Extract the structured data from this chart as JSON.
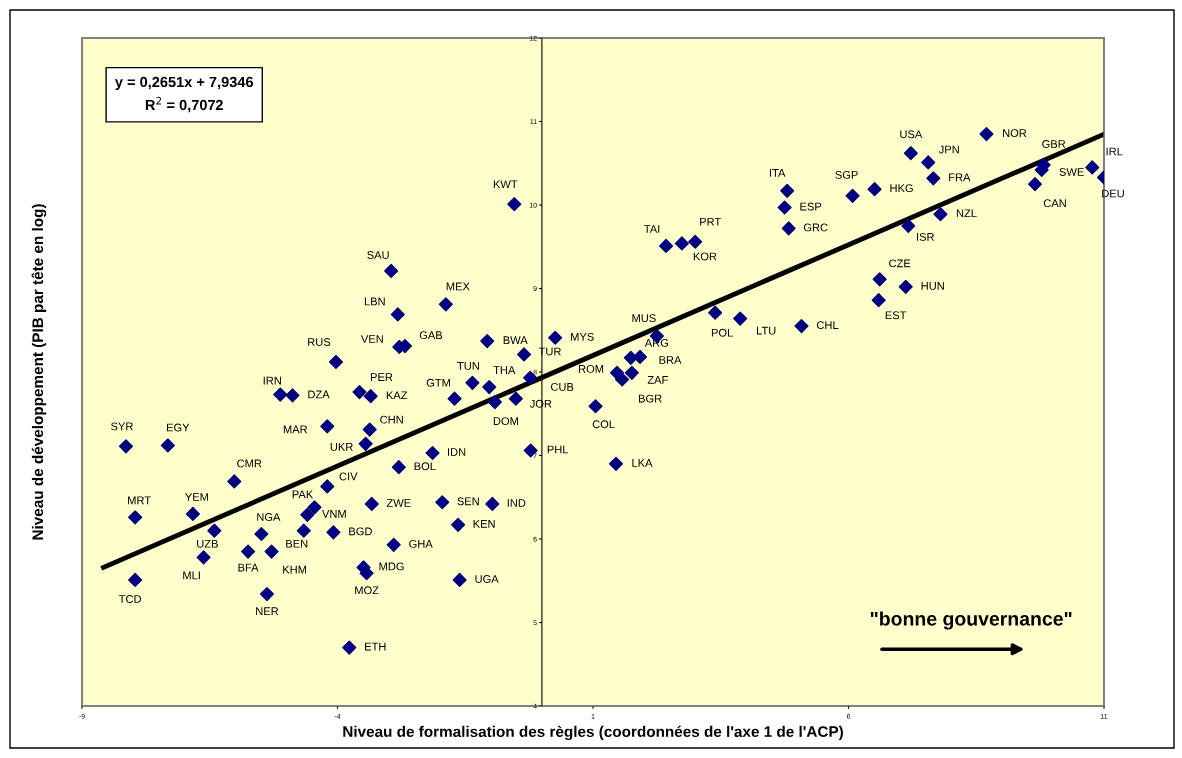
{
  "chart_data": {
    "type": "scatter",
    "xlabel": "Niveau de formalisation des règles (coordonnées de l'axe 1 de l'ACP)",
    "ylabel": "Niveau de développement (PIB par tête en log)",
    "xlim": [
      -9,
      11
    ],
    "xticks": [
      -9,
      -4,
      1,
      6,
      11
    ],
    "ylim": [
      4,
      12
    ],
    "yticks": [
      4,
      5,
      6,
      7,
      8,
      9,
      10,
      11,
      12
    ],
    "grid": false,
    "marker": "diamond",
    "series": [
      {
        "color": "#000080",
        "x": [
          -8.14,
          -7.32,
          -7.96,
          -7.96,
          -6.83,
          -6.41,
          -6.62,
          -6.02,
          -5.49,
          -5.75,
          -5.29,
          -4.66,
          -5.38,
          -4.45,
          -4.59,
          -4.2,
          -4.08,
          -4.03,
          -5.12,
          -4.88,
          -4.2,
          -3.57,
          -3.35,
          -3.37,
          -3.45,
          -2.95,
          -2.82,
          -2.79,
          -2.68,
          -1.88,
          -3.33,
          -3.49,
          -3.43,
          -3.77,
          -2.9,
          -2.8,
          -2.14,
          -1.71,
          -1.36,
          -1.03,
          -0.92,
          -0.51,
          -1.07,
          -0.35,
          -0.23,
          -0.22,
          -1.95,
          -0.97,
          -1.64,
          -1.61,
          -0.54,
          0.26,
          2.25,
          1.47,
          1.57,
          1.76,
          1.74,
          1.92,
          1.05,
          1.45,
          2.43,
          2.74,
          3.0,
          3.39,
          3.88,
          5.08,
          4.8,
          4.75,
          4.83,
          6.08,
          6.51,
          7.22,
          7.56,
          7.66,
          8.7,
          7.8,
          7.17,
          6.61,
          7.12,
          6.59,
          9.82,
          9.78,
          9.65,
          10.77,
          11.0
        ],
        "values": [
          7.11,
          7.12,
          6.26,
          5.51,
          6.3,
          6.1,
          5.78,
          6.69,
          6.06,
          5.85,
          5.85,
          6.1,
          5.34,
          6.38,
          6.29,
          6.63,
          6.08,
          8.12,
          7.73,
          7.72,
          7.35,
          7.76,
          7.71,
          7.31,
          7.14,
          9.21,
          8.69,
          8.3,
          8.31,
          8.81,
          6.42,
          5.66,
          5.59,
          4.7,
          5.93,
          6.86,
          7.03,
          7.68,
          7.87,
          7.82,
          7.64,
          7.68,
          8.37,
          8.21,
          7.93,
          7.06,
          6.44,
          6.42,
          6.17,
          5.51,
          10.01,
          8.41,
          8.43,
          7.99,
          7.91,
          7.99,
          8.17,
          8.18,
          7.59,
          6.9,
          9.51,
          9.54,
          9.56,
          8.71,
          8.64,
          8.55,
          10.17,
          9.97,
          9.72,
          10.11,
          10.19,
          10.62,
          10.51,
          10.32,
          10.85,
          9.89,
          9.75,
          9.11,
          9.02,
          8.86,
          10.48,
          10.42,
          10.25,
          10.45,
          10.33
        ]
      },
      {
        "type": "line",
        "color": "#000000",
        "marker": "none",
        "line_style": "solid",
        "x": [
          -8.58,
          10.97
        ],
        "values": [
          5.66,
          10.84
        ]
      }
    ],
    "annotations": [
      {
        "text": "SYR",
        "x": -8.14,
        "y": 7.11
      },
      {
        "text": "EGY",
        "x": -7.32,
        "y": 7.12
      },
      {
        "text": "MRT",
        "x": -7.96,
        "y": 6.26
      },
      {
        "text": "TCD",
        "x": -7.96,
        "y": 5.51
      },
      {
        "text": "YEM",
        "x": -6.83,
        "y": 6.3
      },
      {
        "text": "UZB",
        "x": -6.41,
        "y": 6.1
      },
      {
        "text": "MLI",
        "x": -6.62,
        "y": 5.78
      },
      {
        "text": "CMR",
        "x": -6.02,
        "y": 6.69
      },
      {
        "text": "NGA",
        "x": -5.49,
        "y": 6.06
      },
      {
        "text": "BFA",
        "x": -5.75,
        "y": 5.85
      },
      {
        "text": "KHM",
        "x": -5.29,
        "y": 5.85
      },
      {
        "text": "BEN",
        "x": -4.66,
        "y": 6.1
      },
      {
        "text": "NER",
        "x": -5.38,
        "y": 5.34
      },
      {
        "text": "PAK",
        "x": -4.45,
        "y": 6.38
      },
      {
        "text": "VNM",
        "x": -4.59,
        "y": 6.29
      },
      {
        "text": "CIV",
        "x": -4.2,
        "y": 6.63
      },
      {
        "text": "BGD",
        "x": -4.08,
        "y": 6.08
      },
      {
        "text": "RUS",
        "x": -4.03,
        "y": 8.12
      },
      {
        "text": "IRN",
        "x": -5.12,
        "y": 7.73
      },
      {
        "text": "DZA",
        "x": -4.88,
        "y": 7.72
      },
      {
        "text": "MAR",
        "x": -4.2,
        "y": 7.35
      },
      {
        "text": "PER",
        "x": -3.57,
        "y": 7.76
      },
      {
        "text": "KAZ",
        "x": -3.35,
        "y": 7.71
      },
      {
        "text": "CHN",
        "x": -3.37,
        "y": 7.31
      },
      {
        "text": "UKR",
        "x": -3.45,
        "y": 7.14
      },
      {
        "text": "SAU",
        "x": -2.95,
        "y": 9.21
      },
      {
        "text": "LBN",
        "x": -2.82,
        "y": 8.69
      },
      {
        "text": "VEN",
        "x": -2.79,
        "y": 8.3
      },
      {
        "text": "GAB",
        "x": -2.68,
        "y": 8.31
      },
      {
        "text": "MEX",
        "x": -1.88,
        "y": 8.81
      },
      {
        "text": "ZWE",
        "x": -3.33,
        "y": 6.42
      },
      {
        "text": "MDG",
        "x": -3.49,
        "y": 5.66
      },
      {
        "text": "MOZ",
        "x": -3.43,
        "y": 5.59
      },
      {
        "text": "ETH",
        "x": -3.77,
        "y": 4.7
      },
      {
        "text": "GHA",
        "x": -2.9,
        "y": 5.93
      },
      {
        "text": "BOL",
        "x": -2.8,
        "y": 6.86
      },
      {
        "text": "IDN",
        "x": -2.14,
        "y": 7.03
      },
      {
        "text": "GTM",
        "x": -1.71,
        "y": 7.68
      },
      {
        "text": "TUN",
        "x": -1.36,
        "y": 7.87
      },
      {
        "text": "THA",
        "x": -1.03,
        "y": 7.82
      },
      {
        "text": "DOM",
        "x": -0.92,
        "y": 7.64
      },
      {
        "text": "JOR",
        "x": -0.51,
        "y": 7.68
      },
      {
        "text": "BWA",
        "x": -1.07,
        "y": 8.37
      },
      {
        "text": "TUR",
        "x": -0.35,
        "y": 8.21
      },
      {
        "text": "CUB",
        "x": -0.23,
        "y": 7.93
      },
      {
        "text": "PHL",
        "x": -0.22,
        "y": 7.06
      },
      {
        "text": "SEN",
        "x": -1.95,
        "y": 6.44
      },
      {
        "text": "IND",
        "x": -0.97,
        "y": 6.42
      },
      {
        "text": "KEN",
        "x": -1.64,
        "y": 6.17
      },
      {
        "text": "UGA",
        "x": -1.61,
        "y": 5.51
      },
      {
        "text": "KWT",
        "x": -0.54,
        "y": 10.01
      },
      {
        "text": "MYS",
        "x": 0.26,
        "y": 8.41
      },
      {
        "text": "MUS",
        "x": 2.25,
        "y": 8.43
      },
      {
        "text": "ROM",
        "x": 1.47,
        "y": 7.99
      },
      {
        "text": "BGR",
        "x": 1.57,
        "y": 7.91
      },
      {
        "text": "ZAF",
        "x": 1.76,
        "y": 7.99
      },
      {
        "text": "ARG",
        "x": 1.74,
        "y": 8.17
      },
      {
        "text": "BRA",
        "x": 1.92,
        "y": 8.18
      },
      {
        "text": "COL",
        "x": 1.05,
        "y": 7.59
      },
      {
        "text": "LKA",
        "x": 1.45,
        "y": 6.9
      },
      {
        "text": "TAI",
        "x": 2.43,
        "y": 9.51
      },
      {
        "text": "KOR",
        "x": 2.74,
        "y": 9.54
      },
      {
        "text": "PRT",
        "x": 3.0,
        "y": 9.56
      },
      {
        "text": "POL",
        "x": 3.39,
        "y": 8.71
      },
      {
        "text": "LTU",
        "x": 3.88,
        "y": 8.64
      },
      {
        "text": "CHL",
        "x": 5.08,
        "y": 8.55
      },
      {
        "text": "ITA",
        "x": 4.8,
        "y": 10.17
      },
      {
        "text": "ESP",
        "x": 4.75,
        "y": 9.97
      },
      {
        "text": "GRC",
        "x": 4.83,
        "y": 9.72
      },
      {
        "text": "SGP",
        "x": 6.08,
        "y": 10.11
      },
      {
        "text": "HKG",
        "x": 6.51,
        "y": 10.19
      },
      {
        "text": "USA",
        "x": 7.22,
        "y": 10.62
      },
      {
        "text": "JPN",
        "x": 7.56,
        "y": 10.51
      },
      {
        "text": "FRA",
        "x": 7.66,
        "y": 10.32
      },
      {
        "text": "NOR",
        "x": 8.7,
        "y": 10.85
      },
      {
        "text": "NZL",
        "x": 7.8,
        "y": 9.89
      },
      {
        "text": "ISR",
        "x": 7.17,
        "y": 9.75
      },
      {
        "text": "CZE",
        "x": 6.61,
        "y": 9.11
      },
      {
        "text": "HUN",
        "x": 7.12,
        "y": 9.02
      },
      {
        "text": "EST",
        "x": 6.59,
        "y": 8.86
      },
      {
        "text": "GBR",
        "x": 9.82,
        "y": 10.48
      },
      {
        "text": "SWE",
        "x": 9.78,
        "y": 10.42
      },
      {
        "text": "CAN",
        "x": 9.65,
        "y": 10.25
      },
      {
        "text": "IRL",
        "x": 10.77,
        "y": 10.45
      },
      {
        "text": "DEU",
        "x": 11.0,
        "y": 10.33
      },
      "y = 0,2651x + 7,9346\nR$^{2}$ = 0,7072",
      "\"bonne gouvernance\""
    ]
  }
}
